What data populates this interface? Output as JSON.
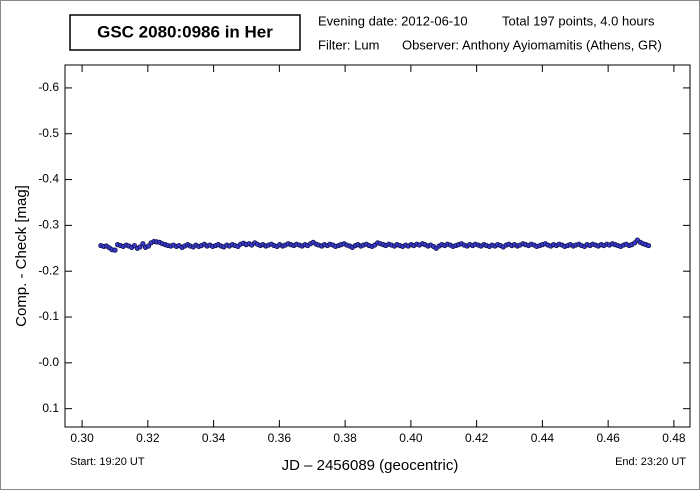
{
  "chart_data": {
    "type": "scatter",
    "title": "GSC 2080:0986 in Her",
    "header": [
      "Evening date: 2012-06-10",
      "Total 197 points, 4.0 hours",
      "Filter: Lum",
      "Observer: Anthony Ayiomamitis (Athens, GR)"
    ],
    "x_label": "JD – 2456089  (geocentric)",
    "y_label": "Comp. - Check [mag]",
    "start_label": "Start: 19:20 UT",
    "end_label": "End: 23:20 UT",
    "xlim": [
      0.2948,
      0.4849
    ],
    "ylim": [
      -0.65,
      0.14
    ],
    "y_inverted": true,
    "xticks": [
      {
        "value": 0.3,
        "label": "0.30"
      },
      0.32,
      0.34,
      0.36,
      0.38,
      {
        "value": 0.4,
        "label": "0.40"
      },
      0.42,
      0.44,
      0.46,
      0.48
    ],
    "yticks": [
      -0.6,
      -0.5,
      -0.4,
      -0.3,
      -0.2,
      -0.1,
      {
        "value": 0,
        "label": "-0.0"
      },
      0.1
    ],
    "series": [
      {
        "color": "#3a3acc",
        "x": [
          0.3057,
          0.3066,
          0.3074,
          0.3083,
          0.3091,
          0.31,
          0.3108,
          0.3117,
          0.3125,
          0.3134,
          0.3142,
          0.3151,
          0.3159,
          0.3168,
          0.3176,
          0.3185,
          0.3193,
          0.3202,
          0.321,
          0.3219,
          0.3227,
          0.3236,
          0.3244,
          0.3253,
          0.3261,
          0.327,
          0.3278,
          0.3287,
          0.3295,
          0.3304,
          0.3312,
          0.3321,
          0.3329,
          0.3338,
          0.3346,
          0.3355,
          0.3363,
          0.3372,
          0.338,
          0.3389,
          0.3397,
          0.3406,
          0.3414,
          0.3423,
          0.3431,
          0.344,
          0.3448,
          0.3457,
          0.3465,
          0.3474,
          0.3482,
          0.3491,
          0.3499,
          0.3508,
          0.3516,
          0.3525,
          0.3533,
          0.3542,
          0.355,
          0.3559,
          0.3567,
          0.3576,
          0.3584,
          0.3593,
          0.3601,
          0.361,
          0.3618,
          0.3627,
          0.3635,
          0.3644,
          0.3652,
          0.3661,
          0.3669,
          0.3678,
          0.3686,
          0.3695,
          0.3703,
          0.3712,
          0.372,
          0.3729,
          0.3737,
          0.3746,
          0.3754,
          0.3763,
          0.3771,
          0.378,
          0.3788,
          0.3797,
          0.3805,
          0.3814,
          0.3822,
          0.3831,
          0.3839,
          0.3848,
          0.3856,
          0.3865,
          0.3873,
          0.3882,
          0.389,
          0.3899,
          0.3907,
          0.3916,
          0.3924,
          0.3933,
          0.3941,
          0.395,
          0.3958,
          0.3967,
          0.3975,
          0.3984,
          0.3992,
          0.4001,
          0.4009,
          0.4018,
          0.4026,
          0.4035,
          0.4043,
          0.4052,
          0.406,
          0.4069,
          0.4077,
          0.4086,
          0.4094,
          0.4103,
          0.4111,
          0.412,
          0.4128,
          0.4137,
          0.4145,
          0.4154,
          0.4162,
          0.4171,
          0.4179,
          0.4188,
          0.4196,
          0.4205,
          0.4213,
          0.4222,
          0.423,
          0.4239,
          0.4247,
          0.4256,
          0.4264,
          0.4273,
          0.4281,
          0.429,
          0.4298,
          0.4307,
          0.4315,
          0.4324,
          0.4332,
          0.4341,
          0.4349,
          0.4358,
          0.4366,
          0.4375,
          0.4383,
          0.4392,
          0.44,
          0.4409,
          0.4417,
          0.4426,
          0.4434,
          0.4443,
          0.4451,
          0.446,
          0.4468,
          0.4477,
          0.4485,
          0.4494,
          0.4502,
          0.4511,
          0.4519,
          0.4528,
          0.4536,
          0.4545,
          0.4553,
          0.4562,
          0.457,
          0.4579,
          0.4587,
          0.4596,
          0.4604,
          0.4613,
          0.4621,
          0.463,
          0.4638,
          0.4647,
          0.4655,
          0.4664,
          0.4672,
          0.4681,
          0.4689,
          0.4698,
          0.4706,
          0.4715,
          0.4723
        ],
        "values": [
          -0.256,
          -0.254,
          -0.255,
          -0.251,
          -0.247,
          -0.246,
          -0.258,
          -0.256,
          -0.254,
          -0.257,
          -0.255,
          -0.252,
          -0.256,
          -0.25,
          -0.253,
          -0.26,
          -0.252,
          -0.255,
          -0.262,
          -0.265,
          -0.264,
          -0.263,
          -0.26,
          -0.258,
          -0.256,
          -0.255,
          -0.257,
          -0.254,
          -0.256,
          -0.252,
          -0.255,
          -0.258,
          -0.255,
          -0.253,
          -0.257,
          -0.254,
          -0.256,
          -0.259,
          -0.255,
          -0.257,
          -0.254,
          -0.256,
          -0.258,
          -0.255,
          -0.253,
          -0.257,
          -0.255,
          -0.258,
          -0.256,
          -0.254,
          -0.259,
          -0.261,
          -0.258,
          -0.26,
          -0.257,
          -0.262,
          -0.259,
          -0.256,
          -0.258,
          -0.255,
          -0.257,
          -0.259,
          -0.256,
          -0.254,
          -0.258,
          -0.255,
          -0.257,
          -0.26,
          -0.258,
          -0.256,
          -0.259,
          -0.257,
          -0.255,
          -0.258,
          -0.256,
          -0.26,
          -0.263,
          -0.259,
          -0.257,
          -0.255,
          -0.258,
          -0.256,
          -0.259,
          -0.257,
          -0.254,
          -0.256,
          -0.258,
          -0.26,
          -0.257,
          -0.255,
          -0.252,
          -0.256,
          -0.258,
          -0.255,
          -0.257,
          -0.259,
          -0.256,
          -0.254,
          -0.257,
          -0.262,
          -0.26,
          -0.258,
          -0.256,
          -0.259,
          -0.257,
          -0.255,
          -0.258,
          -0.256,
          -0.254,
          -0.257,
          -0.255,
          -0.258,
          -0.256,
          -0.259,
          -0.257,
          -0.26,
          -0.258,
          -0.255,
          -0.257,
          -0.254,
          -0.25,
          -0.255,
          -0.258,
          -0.256,
          -0.259,
          -0.257,
          -0.254,
          -0.256,
          -0.258,
          -0.26,
          -0.257,
          -0.255,
          -0.258,
          -0.256,
          -0.259,
          -0.257,
          -0.255,
          -0.258,
          -0.256,
          -0.254,
          -0.257,
          -0.255,
          -0.258,
          -0.256,
          -0.253,
          -0.257,
          -0.259,
          -0.256,
          -0.258,
          -0.255,
          -0.257,
          -0.26,
          -0.258,
          -0.256,
          -0.259,
          -0.257,
          -0.254,
          -0.256,
          -0.258,
          -0.26,
          -0.257,
          -0.255,
          -0.258,
          -0.256,
          -0.259,
          -0.257,
          -0.254,
          -0.256,
          -0.258,
          -0.255,
          -0.257,
          -0.259,
          -0.256,
          -0.254,
          -0.258,
          -0.256,
          -0.259,
          -0.257,
          -0.255,
          -0.258,
          -0.256,
          -0.259,
          -0.257,
          -0.26,
          -0.258,
          -0.256,
          -0.254,
          -0.257,
          -0.259,
          -0.256,
          -0.258,
          -0.262,
          -0.268,
          -0.263,
          -0.26,
          -0.258,
          -0.256
        ]
      }
    ]
  }
}
